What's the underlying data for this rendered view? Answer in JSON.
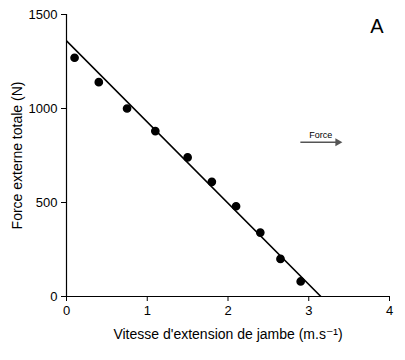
{
  "chart_data": {
    "type": "scatter",
    "panel_label": "A",
    "x_label": "Vitesse d'extension de jambe (m.s⁻¹)",
    "y_label": "Force externe totale (N)",
    "annotations": [
      {
        "text": "Force",
        "x": 3.15,
        "y": 860
      }
    ],
    "series": [
      {
        "type": "scatter",
        "color": "#000000",
        "marker": "circle",
        "x": [
          0.1,
          0.4,
          0.75,
          1.1,
          1.5,
          1.8,
          2.1,
          2.4,
          2.65,
          2.9
        ],
        "values": [
          1270,
          1140,
          1000,
          880,
          740,
          610,
          480,
          340,
          200,
          80
        ]
      },
      {
        "type": "line",
        "color": "#000000",
        "line_style": "solid",
        "x": [
          0,
          3.15
        ],
        "values": [
          1360,
          0
        ]
      }
    ],
    "xlim": [
      0,
      4
    ],
    "xticks": [
      0,
      1,
      2,
      3,
      4
    ],
    "ylim": [
      0,
      1500
    ],
    "yticks": [
      0,
      500,
      1000,
      1500
    ],
    "grid": false
  }
}
